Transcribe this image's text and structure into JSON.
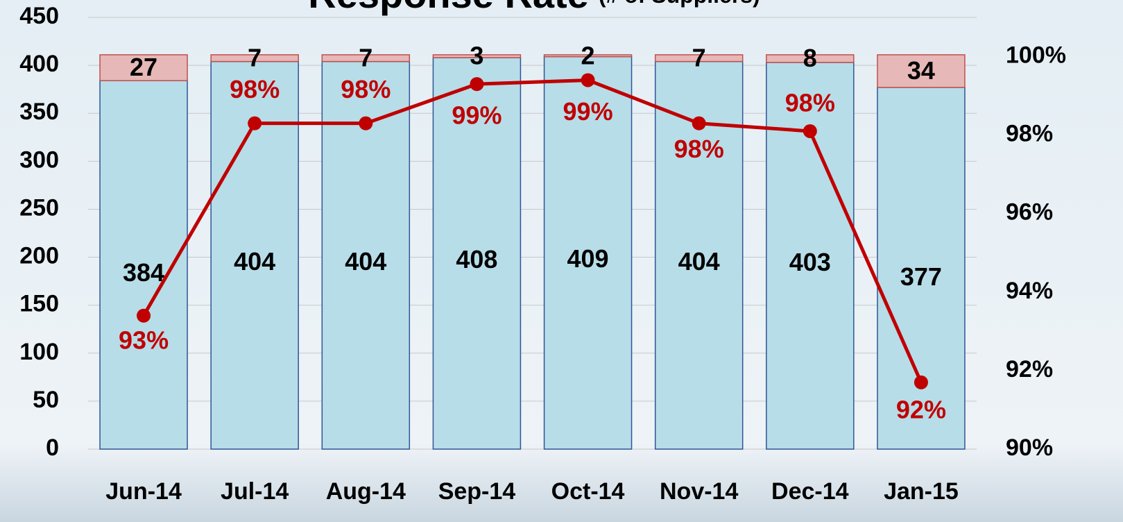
{
  "chart_data": {
    "type": "bar",
    "title": "Response Rate",
    "subtitle": "(# of Suppliers)",
    "categories": [
      "Jun-14",
      "Jul-14",
      "Aug-14",
      "Sep-14",
      "Oct-14",
      "Nov-14",
      "Dec-14",
      "Jan-15"
    ],
    "stacked": true,
    "series": [
      {
        "type": "bar",
        "color": "#b7dde8",
        "values": [
          384,
          404,
          404,
          408,
          409,
          404,
          403,
          377
        ]
      },
      {
        "type": "bar",
        "color": "#e6b8b7",
        "values": [
          27,
          7,
          7,
          3,
          2,
          7,
          8,
          34
        ]
      },
      {
        "type": "line",
        "axis": "y2",
        "color": "#c00000",
        "values": [
          93.4,
          98.3,
          98.3,
          99.3,
          99.4,
          98.3,
          98.1,
          91.7
        ],
        "value_labels": [
          "93%",
          "98%",
          "98%",
          "99%",
          "99%",
          "98%",
          "98%",
          "92%"
        ]
      }
    ],
    "ylim": [
      0,
      450
    ],
    "yticks": [
      0,
      50,
      100,
      150,
      200,
      250,
      300,
      350,
      400,
      450
    ],
    "y2lim": [
      90,
      101
    ],
    "y2ticks": [
      {
        "value": 90,
        "label": "90%"
      },
      {
        "value": 92,
        "label": "92%"
      },
      {
        "value": 94,
        "label": "94%"
      },
      {
        "value": 96,
        "label": "96%"
      },
      {
        "value": 98,
        "label": "98%"
      },
      {
        "value": 100,
        "label": "100%"
      }
    ],
    "grid": true
  }
}
